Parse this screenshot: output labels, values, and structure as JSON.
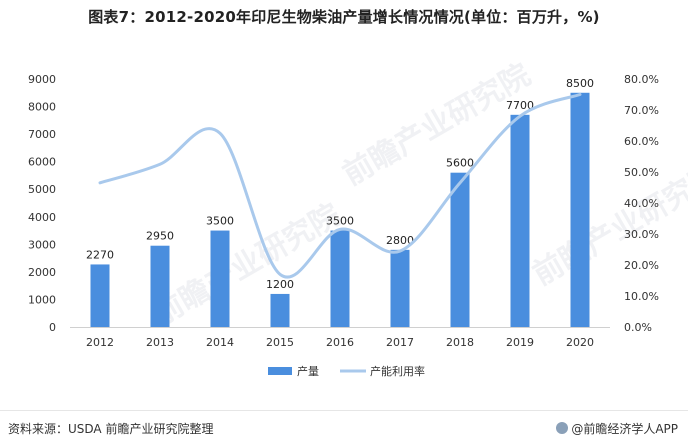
{
  "title": "图表7：2012-2020年印尼生物柴油产量增长情况情况(单位：百万升，%)",
  "footer": {
    "source": "资料来源：USDA 前瞻产业研究院整理",
    "brand": "@前瞻经济学人APP"
  },
  "watermark": "前瞻产业研究院",
  "colors": {
    "bar": "#4a8ede",
    "line": "#a9c9ec"
  },
  "chart_data": {
    "type": "bar",
    "categories": [
      "2012",
      "2013",
      "2014",
      "2015",
      "2016",
      "2017",
      "2018",
      "2019",
      "2020"
    ],
    "series": [
      {
        "name": "产量",
        "type": "bar",
        "axis": "left",
        "values": [
          2270,
          2950,
          3500,
          1200,
          3500,
          2800,
          5600,
          7700,
          8500
        ],
        "data_labels": [
          "2270",
          "2950",
          "3500",
          "1200",
          "3500",
          "2800",
          "5600",
          "7700",
          "8500"
        ]
      },
      {
        "name": "产能利用率",
        "type": "line",
        "axis": "right",
        "smooth": true,
        "values": [
          46.5,
          52.5,
          62.5,
          17.0,
          31.5,
          24.5,
          46.5,
          68.0,
          75.0
        ]
      }
    ],
    "y_left": {
      "ylim": [
        0,
        9000
      ],
      "ticks": [
        "0",
        "1000",
        "2000",
        "3000",
        "4000",
        "5000",
        "6000",
        "7000",
        "8000",
        "9000"
      ]
    },
    "y_right": {
      "ylim": [
        0,
        80
      ],
      "ticks": [
        "0.0%",
        "10.0%",
        "20.0%",
        "30.0%",
        "40.0%",
        "50.0%",
        "60.0%",
        "70.0%",
        "80.0%"
      ]
    },
    "legend": {
      "position": "bottom",
      "items": [
        "产量",
        "产能利用率"
      ]
    },
    "grid": false
  }
}
